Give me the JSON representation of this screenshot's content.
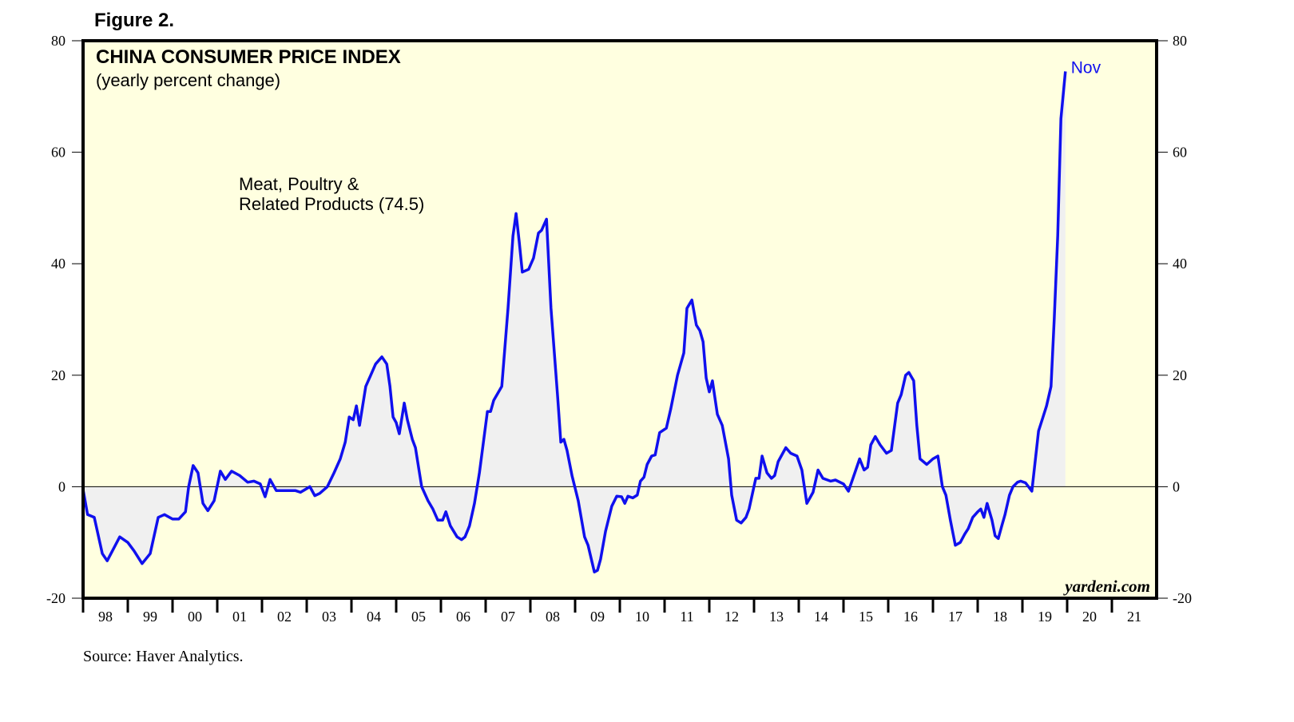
{
  "chart_data": {
    "type": "line",
    "figure_label": "Figure 2.",
    "title": "CHINA CONSUMER PRICE INDEX",
    "subtitle": "(yearly percent change)",
    "annotation": [
      "Meat, Poultry &",
      "Related Products (74.5)"
    ],
    "end_label": "Nov",
    "watermark": "yardeni.com",
    "source": "Source: Haver Analytics.",
    "xlim": [
      1998,
      2022
    ],
    "xticks": [
      {
        "value": 1998,
        "label": "98"
      },
      {
        "value": 1999,
        "label": "99"
      },
      {
        "value": 2000,
        "label": "00"
      },
      {
        "value": 2001,
        "label": "01"
      },
      {
        "value": 2002,
        "label": "02"
      },
      {
        "value": 2003,
        "label": "03"
      },
      {
        "value": 2004,
        "label": "04"
      },
      {
        "value": 2005,
        "label": "05"
      },
      {
        "value": 2006,
        "label": "06"
      },
      {
        "value": 2007,
        "label": "07"
      },
      {
        "value": 2008,
        "label": "08"
      },
      {
        "value": 2009,
        "label": "09"
      },
      {
        "value": 2010,
        "label": "10"
      },
      {
        "value": 2011,
        "label": "11"
      },
      {
        "value": 2012,
        "label": "12"
      },
      {
        "value": 2013,
        "label": "13"
      },
      {
        "value": 2014,
        "label": "14"
      },
      {
        "value": 2015,
        "label": "15"
      },
      {
        "value": 2016,
        "label": "16"
      },
      {
        "value": 2017,
        "label": "17"
      },
      {
        "value": 2018,
        "label": "18"
      },
      {
        "value": 2019,
        "label": "19"
      },
      {
        "value": 2020,
        "label": "20"
      },
      {
        "value": 2021,
        "label": "21"
      }
    ],
    "ylim": [
      -20,
      80
    ],
    "yticks": [
      -20,
      0,
      20,
      40,
      60,
      80
    ],
    "x": [
      1998.0,
      1998.1,
      1998.25,
      1998.43,
      1998.54,
      1998.82,
      1999.0,
      1999.14,
      1999.32,
      1999.5,
      1999.68,
      1999.82,
      2000.0,
      2000.14,
      2000.29,
      2000.36,
      2000.46,
      2000.57,
      2000.68,
      2000.79,
      2000.93,
      2001.07,
      2001.18,
      2001.32,
      2001.5,
      2001.68,
      2001.82,
      2001.96,
      2002.07,
      2002.18,
      2002.32,
      2002.75,
      2002.86,
      2003.07,
      2003.18,
      2003.29,
      2003.46,
      2003.61,
      2003.75,
      2003.86,
      2003.95,
      2004.04,
      2004.11,
      2004.18,
      2004.32,
      2004.43,
      2004.54,
      2004.68,
      2004.79,
      2004.86,
      2004.93,
      2005.0,
      2005.07,
      2005.18,
      2005.25,
      2005.36,
      2005.43,
      2005.57,
      2005.71,
      2005.82,
      2005.93,
      2006.04,
      2006.11,
      2006.21,
      2006.36,
      2006.46,
      2006.54,
      2006.64,
      2006.75,
      2006.86,
      2007.04,
      2007.11,
      2007.18,
      2007.36,
      2007.5,
      2007.61,
      2007.68,
      2007.75,
      2007.82,
      2007.96,
      2008.07,
      2008.18,
      2008.25,
      2008.36,
      2008.46,
      2008.61,
      2008.68,
      2008.75,
      2008.82,
      2008.93,
      2009.07,
      2009.21,
      2009.29,
      2009.43,
      2009.5,
      2009.57,
      2009.68,
      2009.82,
      2009.93,
      2010.04,
      2010.11,
      2010.18,
      2010.29,
      2010.39,
      2010.46,
      2010.54,
      2010.61,
      2010.71,
      2010.79,
      2010.89,
      2011.04,
      2011.14,
      2011.29,
      2011.43,
      2011.5,
      2011.61,
      2011.71,
      2011.79,
      2011.86,
      2011.93,
      2012.0,
      2012.07,
      2012.18,
      2012.29,
      2012.43,
      2012.5,
      2012.61,
      2012.71,
      2012.82,
      2012.89,
      2013.04,
      2013.11,
      2013.18,
      2013.29,
      2013.39,
      2013.46,
      2013.54,
      2013.71,
      2013.82,
      2013.96,
      2014.07,
      2014.18,
      2014.32,
      2014.43,
      2014.54,
      2014.71,
      2014.82,
      2015.0,
      2015.11,
      2015.21,
      2015.36,
      2015.46,
      2015.54,
      2015.61,
      2015.71,
      2015.82,
      2015.96,
      2016.07,
      2016.21,
      2016.29,
      2016.39,
      2016.46,
      2016.57,
      2016.64,
      2016.71,
      2016.86,
      2017.0,
      2017.11,
      2017.21,
      2017.29,
      2017.39,
      2017.5,
      2017.61,
      2017.71,
      2017.79,
      2017.89,
      2018.0,
      2018.07,
      2018.14,
      2018.21,
      2018.32,
      2018.39,
      2018.46,
      2018.54,
      2018.61,
      2018.71,
      2018.79,
      2018.89,
      2018.96,
      2019.07,
      2019.21,
      2019.36,
      2019.46,
      2019.54,
      2019.64,
      2019.71,
      2019.79,
      2019.86,
      2019.96
    ],
    "series": [
      {
        "name": "Meat, Poultry & Related Products",
        "color": "#1010ee",
        "values": [
          -0.5,
          -5,
          -5.5,
          -12,
          -13.3,
          -9,
          -10,
          -11.5,
          -13.8,
          -12,
          -5.5,
          -5,
          -5.8,
          -5.8,
          -4.5,
          0,
          3.8,
          2.5,
          -3,
          -4.3,
          -2.5,
          2.8,
          1.3,
          2.8,
          2,
          0.8,
          1,
          0.5,
          -1.8,
          1.3,
          -0.7,
          -0.7,
          -1,
          0,
          -1.6,
          -1.2,
          0,
          2.5,
          5,
          8,
          12.5,
          12,
          14.5,
          11,
          18,
          20,
          22,
          23.3,
          22,
          18,
          12.5,
          11.5,
          9.5,
          15,
          12,
          8.5,
          7,
          0,
          -2.5,
          -4,
          -6,
          -6,
          -4.5,
          -7,
          -9,
          -9.5,
          -9,
          -7,
          -3,
          2.5,
          13.5,
          13.5,
          15.5,
          18,
          32,
          45,
          49,
          44,
          38.5,
          39,
          41,
          45.5,
          46,
          48,
          32,
          16,
          8,
          8.5,
          6.5,
          2,
          -2.5,
          -9,
          -10.5,
          -15.3,
          -15,
          -13,
          -8,
          -3.5,
          -1.7,
          -1.8,
          -3,
          -1.7,
          -2,
          -1.5,
          1,
          1.7,
          4,
          5.5,
          5.7,
          9.7,
          10.5,
          14,
          20,
          24,
          32,
          33.5,
          29,
          28,
          26,
          19.5,
          17,
          19,
          13,
          11,
          5,
          -1.5,
          -6,
          -6.5,
          -5.5,
          -4,
          1.5,
          1.5,
          5.5,
          2.5,
          1.5,
          2,
          4.5,
          7,
          6,
          5.5,
          3,
          -3,
          -1,
          3,
          1.5,
          1,
          1.2,
          0.5,
          -0.8,
          1.5,
          5,
          3,
          3.5,
          7.5,
          9,
          7.5,
          6,
          6.5,
          15,
          16.5,
          20,
          20.5,
          19,
          11,
          5,
          4,
          5,
          5.5,
          0,
          -1.5,
          -6,
          -10.5,
          -10,
          -8.5,
          -7.5,
          -5.5,
          -4.5,
          -4,
          -5.5,
          -3,
          -6,
          -8.8,
          -9.3,
          -7,
          -5,
          -1.5,
          0,
          0.8,
          1,
          0.7,
          -0.8,
          10,
          12.5,
          14.5,
          18,
          30,
          45,
          66,
          74.5
        ]
      }
    ],
    "plot_background": "#ffffe0",
    "area_color": "#f0f0f0"
  }
}
